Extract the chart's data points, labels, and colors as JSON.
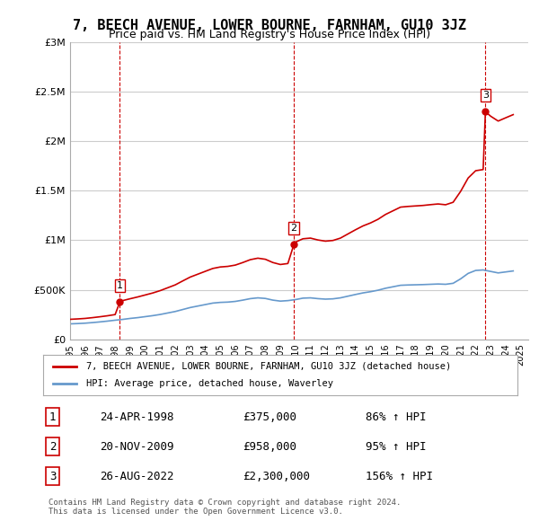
{
  "title": "7, BEECH AVENUE, LOWER BOURNE, FARNHAM, GU10 3JZ",
  "subtitle": "Price paid vs. HM Land Registry's House Price Index (HPI)",
  "ylabel_ticks": [
    "£0",
    "£500K",
    "£1M",
    "£1.5M",
    "£2M",
    "£2.5M",
    "£3M"
  ],
  "ytick_values": [
    0,
    500000,
    1000000,
    1500000,
    2000000,
    2500000,
    3000000
  ],
  "ylim": [
    0,
    3000000
  ],
  "xlim_start": 1995.0,
  "xlim_end": 2025.5,
  "sale_dates": [
    1998.31,
    2009.9,
    2022.65
  ],
  "sale_prices": [
    375000,
    958000,
    2300000
  ],
  "sale_labels": [
    "1",
    "2",
    "3"
  ],
  "sale_text": [
    [
      "1",
      "24-APR-1998",
      "£375,000",
      "86% ↑ HPI"
    ],
    [
      "2",
      "20-NOV-2009",
      "£958,000",
      "95% ↑ HPI"
    ],
    [
      "3",
      "26-AUG-2022",
      "£2,300,000",
      "156% ↑ HPI"
    ]
  ],
  "legend_line1": "7, BEECH AVENUE, LOWER BOURNE, FARNHAM, GU10 3JZ (detached house)",
  "legend_line2": "HPI: Average price, detached house, Waverley",
  "footnote": "Contains HM Land Registry data © Crown copyright and database right 2024.\nThis data is licensed under the Open Government Licence v3.0.",
  "red_color": "#cc0000",
  "blue_color": "#6699cc",
  "dashed_color": "#cc0000",
  "background_color": "#ffffff",
  "grid_color": "#cccccc",
  "title_fontsize": 11,
  "subtitle_fontsize": 9,
  "axis_fontsize": 8,
  "hpi_waverley_x": [
    1995.0,
    1995.5,
    1996.0,
    1996.5,
    1997.0,
    1997.5,
    1998.0,
    1998.5,
    1999.0,
    1999.5,
    2000.0,
    2000.5,
    2001.0,
    2001.5,
    2002.0,
    2002.5,
    2003.0,
    2003.5,
    2004.0,
    2004.5,
    2005.0,
    2005.5,
    2006.0,
    2006.5,
    2007.0,
    2007.5,
    2008.0,
    2008.5,
    2009.0,
    2009.5,
    2010.0,
    2010.5,
    2011.0,
    2011.5,
    2012.0,
    2012.5,
    2013.0,
    2013.5,
    2014.0,
    2014.5,
    2015.0,
    2015.5,
    2016.0,
    2016.5,
    2017.0,
    2017.5,
    2018.0,
    2018.5,
    2019.0,
    2019.5,
    2020.0,
    2020.5,
    2021.0,
    2021.5,
    2022.0,
    2022.5,
    2023.0,
    2023.5,
    2024.0,
    2024.5
  ],
  "hpi_waverley_y": [
    155000,
    158000,
    162000,
    168000,
    175000,
    183000,
    192000,
    200000,
    210000,
    218000,
    228000,
    238000,
    250000,
    265000,
    280000,
    300000,
    320000,
    335000,
    350000,
    365000,
    372000,
    375000,
    382000,
    395000,
    410000,
    418000,
    412000,
    395000,
    385000,
    390000,
    400000,
    415000,
    418000,
    410000,
    405000,
    408000,
    418000,
    435000,
    452000,
    468000,
    480000,
    495000,
    515000,
    530000,
    545000,
    548000,
    550000,
    552000,
    555000,
    558000,
    555000,
    565000,
    610000,
    665000,
    695000,
    700000,
    685000,
    670000,
    680000,
    690000
  ],
  "red_line_x": [
    1995.0,
    1995.5,
    1996.0,
    1996.5,
    1997.0,
    1997.5,
    1998.0,
    1998.31,
    1998.5,
    1999.0,
    1999.5,
    2000.0,
    2000.5,
    2001.0,
    2001.5,
    2002.0,
    2002.5,
    2003.0,
    2003.5,
    2004.0,
    2004.5,
    2005.0,
    2005.5,
    2006.0,
    2006.5,
    2007.0,
    2007.5,
    2008.0,
    2008.5,
    2009.0,
    2009.5,
    2009.9,
    2010.0,
    2010.5,
    2011.0,
    2011.5,
    2012.0,
    2012.5,
    2013.0,
    2013.5,
    2014.0,
    2014.5,
    2015.0,
    2015.5,
    2016.0,
    2016.5,
    2017.0,
    2017.5,
    2018.0,
    2018.5,
    2019.0,
    2019.5,
    2020.0,
    2020.5,
    2021.0,
    2021.5,
    2022.0,
    2022.5,
    2022.65,
    2023.0,
    2023.5,
    2024.0,
    2024.5
  ],
  "red_line_y": [
    201000,
    205000,
    210000,
    218000,
    227000,
    237000,
    249000,
    375000,
    390000,
    409000,
    427000,
    447000,
    467000,
    491000,
    520000,
    549000,
    589000,
    628000,
    657000,
    686000,
    715000,
    730000,
    736000,
    749000,
    775000,
    804000,
    819000,
    808000,
    775000,
    755000,
    765000,
    958000,
    981000,
    1015000,
    1022000,
    1003000,
    991000,
    998000,
    1022000,
    1064000,
    1106000,
    1145000,
    1175000,
    1212000,
    1261000,
    1298000,
    1335000,
    1342000,
    1347000,
    1352000,
    1360000,
    1367000,
    1359000,
    1384000,
    1494000,
    1629000,
    1703000,
    1715000,
    2300000,
    2254000,
    2205000,
    2238000,
    2270000
  ]
}
